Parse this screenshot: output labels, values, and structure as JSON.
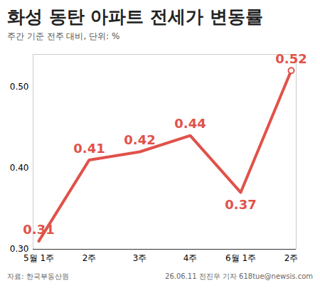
{
  "chart_data": {
    "type": "line",
    "title": "화성 동탄 아파트 전세가 변동률",
    "subtitle": "주간 기준 전주 대비, 단위: %",
    "source": "자료: 한국부동산원",
    "credit": "26.06.11 전진우 기자 618tue@newsis.com",
    "categories": [
      "5월 1주",
      "2주",
      "3주",
      "4주",
      "6월 1주",
      "2주"
    ],
    "values": [
      0.31,
      0.41,
      0.42,
      0.44,
      0.37,
      0.52
    ],
    "color": "#e0524a",
    "ylim": [
      0.3,
      0.54
    ],
    "yticks": [
      0.3,
      0.4,
      0.5
    ],
    "grid": false,
    "data_labels": true
  }
}
